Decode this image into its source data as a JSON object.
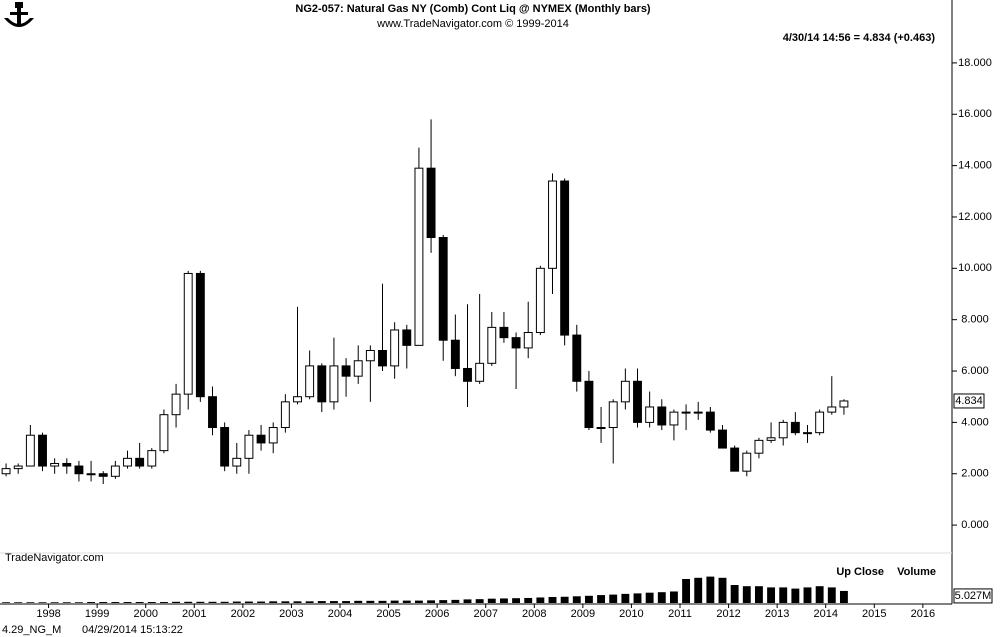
{
  "chart_data": {
    "type": "candlestick",
    "title": "NG2-057:  Natural Gas NY (Comb) Cont Liq @ NYMEX  (Monthly bars)",
    "subtitle": "www.TradeNavigator.com © 1999-2014",
    "header_note": "4/30/14 14:56 = 4.834 (+0.463)",
    "watermark": "TradeNavigator.com",
    "x": [
      1997,
      1997.25,
      1997.5,
      1997.75,
      1998,
      1998.25,
      1998.5,
      1998.75,
      1999,
      1999.25,
      1999.5,
      1999.75,
      2000,
      2000.25,
      2000.5,
      2000.75,
      2001,
      2001.25,
      2001.5,
      2001.75,
      2002,
      2002.25,
      2002.5,
      2002.75,
      2003,
      2003.25,
      2003.5,
      2003.75,
      2004,
      2004.25,
      2004.5,
      2004.75,
      2005,
      2005.25,
      2005.5,
      2005.75,
      2006,
      2006.25,
      2006.5,
      2006.75,
      2007,
      2007.25,
      2007.5,
      2007.75,
      2008,
      2008.25,
      2008.5,
      2008.75,
      2009,
      2009.25,
      2009.5,
      2009.75,
      2010,
      2010.25,
      2010.5,
      2010.75,
      2011,
      2011.25,
      2011.5,
      2011.75,
      2012,
      2012.25,
      2012.5,
      2012.75,
      2013,
      2013.25,
      2013.5,
      2013.75,
      2014,
      2014.25
    ],
    "open": [
      2.0,
      2.2,
      2.3,
      3.5,
      2.3,
      2.4,
      2.3,
      2.0,
      2.0,
      1.9,
      2.3,
      2.6,
      2.3,
      2.9,
      4.3,
      5.1,
      9.8,
      5.0,
      3.8,
      2.3,
      2.6,
      3.5,
      3.2,
      3.8,
      4.8,
      5.0,
      6.2,
      4.8,
      6.2,
      5.8,
      6.4,
      6.8,
      6.2,
      7.6,
      7.0,
      13.9,
      11.2,
      7.2,
      6.1,
      5.6,
      6.3,
      7.7,
      7.3,
      6.9,
      7.5,
      10.0,
      13.4,
      7.4,
      5.6,
      3.8,
      3.8,
      4.8,
      5.6,
      4.0,
      4.6,
      3.9,
      4.4,
      4.4,
      4.4,
      3.7,
      3.0,
      2.1,
      2.8,
      3.3,
      3.4,
      4.0,
      3.6,
      3.6,
      4.4,
      4.6
    ],
    "high": [
      2.4,
      2.4,
      3.9,
      3.6,
      2.6,
      2.6,
      2.5,
      2.5,
      2.1,
      2.5,
      2.9,
      3.2,
      3.0,
      4.5,
      5.5,
      9.9,
      9.9,
      5.4,
      4.0,
      3.2,
      3.7,
      3.9,
      4.0,
      5.1,
      8.5,
      6.8,
      6.3,
      7.3,
      6.5,
      7.0,
      7.0,
      9.4,
      7.9,
      7.8,
      14.7,
      15.8,
      11.3,
      8.2,
      8.6,
      9.0,
      8.3,
      8.3,
      7.5,
      8.7,
      10.1,
      13.7,
      13.5,
      7.8,
      6.0,
      4.6,
      4.9,
      6.1,
      6.1,
      5.2,
      4.9,
      4.5,
      4.7,
      4.8,
      4.6,
      3.9,
      3.1,
      2.9,
      3.4,
      4.0,
      4.1,
      4.4,
      3.9,
      4.5,
      5.8,
      4.9
    ],
    "low": [
      1.9,
      2.0,
      2.3,
      2.1,
      2.0,
      2.0,
      1.7,
      1.7,
      1.6,
      1.8,
      2.2,
      2.2,
      2.2,
      2.8,
      3.8,
      4.5,
      4.8,
      3.5,
      2.1,
      2.0,
      2.0,
      2.9,
      2.8,
      3.6,
      4.7,
      4.9,
      4.4,
      4.5,
      5.0,
      5.5,
      4.8,
      6.0,
      5.7,
      6.1,
      7.0,
      10.6,
      6.4,
      5.8,
      4.6,
      5.5,
      6.2,
      7.1,
      5.3,
      6.5,
      7.4,
      9.0,
      7.0,
      5.2,
      3.7,
      3.2,
      2.4,
      4.5,
      3.8,
      3.8,
      3.7,
      3.3,
      3.7,
      4.1,
      3.6,
      3.0,
      2.1,
      1.9,
      2.6,
      3.2,
      3.1,
      3.5,
      3.2,
      3.5,
      4.3,
      4.3
    ],
    "close": [
      2.2,
      2.3,
      3.5,
      2.3,
      2.4,
      2.3,
      2.0,
      2.0,
      1.9,
      2.3,
      2.6,
      2.3,
      2.9,
      4.3,
      5.1,
      9.8,
      5.0,
      3.8,
      2.3,
      2.6,
      3.5,
      3.2,
      3.8,
      4.8,
      5.0,
      6.2,
      4.8,
      6.2,
      5.8,
      6.4,
      6.8,
      6.2,
      7.6,
      7.0,
      13.9,
      11.2,
      7.2,
      6.1,
      5.6,
      6.3,
      7.7,
      7.3,
      6.9,
      7.5,
      10.0,
      13.4,
      7.4,
      5.6,
      3.8,
      3.8,
      4.8,
      5.6,
      4.0,
      4.6,
      3.9,
      4.4,
      4.4,
      4.4,
      3.7,
      3.0,
      2.1,
      2.8,
      3.3,
      3.4,
      4.0,
      3.6,
      3.6,
      4.4,
      4.6,
      4.834
    ],
    "color": "#000000",
    "xlim": [
      1997,
      2016.6
    ],
    "xticks": [
      1998,
      1999,
      2000,
      2001,
      2002,
      2003,
      2004,
      2005,
      2006,
      2007,
      2008,
      2009,
      2010,
      2011,
      2012,
      2013,
      2014,
      2015,
      2016
    ],
    "ylim": [
      -0.97,
      20.45
    ],
    "yticks": [
      {
        "value": 0,
        "label": "0.000"
      },
      {
        "value": 2,
        "label": "2.000"
      },
      {
        "value": 4,
        "label": "4.000"
      },
      {
        "value": 6,
        "label": "6.000"
      },
      {
        "value": 8,
        "label": "8.000"
      },
      {
        "value": 10,
        "label": "10.000"
      },
      {
        "value": 12,
        "label": "12.000"
      },
      {
        "value": 14,
        "label": "14.000"
      },
      {
        "value": 16,
        "label": "16.000"
      },
      {
        "value": 18,
        "label": "18.000"
      }
    ],
    "volume": {
      "label": "Up Close",
      "name": "Volume",
      "color": "#000000",
      "ylim": [
        0,
        20
      ],
      "values": [
        0.3,
        0.3,
        0.3,
        0.3,
        0.3,
        0.3,
        0.3,
        0.4,
        0.4,
        0.4,
        0.4,
        0.4,
        0.4,
        0.4,
        0.5,
        0.5,
        0.5,
        0.5,
        0.5,
        0.6,
        0.6,
        0.6,
        0.7,
        0.7,
        0.7,
        0.7,
        0.8,
        0.8,
        0.8,
        0.9,
        0.9,
        0.9,
        1.0,
        1.0,
        1.0,
        1.1,
        1.2,
        1.3,
        1.5,
        1.6,
        1.8,
        1.9,
        2.0,
        2.1,
        2.3,
        2.5,
        2.6,
        2.8,
        3.0,
        3.3,
        3.5,
        3.8,
        4.0,
        4.3,
        4.5,
        4.8,
        10.0,
        10.5,
        11.0,
        10.5,
        7.5,
        7.0,
        7.0,
        6.5,
        6.5,
        6.0,
        6.5,
        7.0,
        6.5,
        5.027
      ],
      "value_labels": [
        null,
        null,
        null,
        null,
        null,
        null,
        null,
        null,
        null,
        null,
        null,
        null,
        null,
        null,
        null,
        null,
        null,
        null,
        null,
        null,
        null,
        null,
        null,
        null,
        null,
        null,
        null,
        null,
        null,
        null,
        null,
        null,
        null,
        null,
        null,
        null,
        null,
        null,
        null,
        null,
        null,
        null,
        null,
        null,
        null,
        null,
        null,
        null,
        null,
        null,
        null,
        null,
        null,
        null,
        null,
        null,
        null,
        null,
        null,
        null,
        null,
        null,
        null,
        null,
        null,
        null,
        null,
        null,
        null,
        "5.027M"
      ]
    }
  },
  "footer": {
    "symbol": "4.29_NG_M",
    "timestamp": "04/29/2014 15:13:22"
  }
}
